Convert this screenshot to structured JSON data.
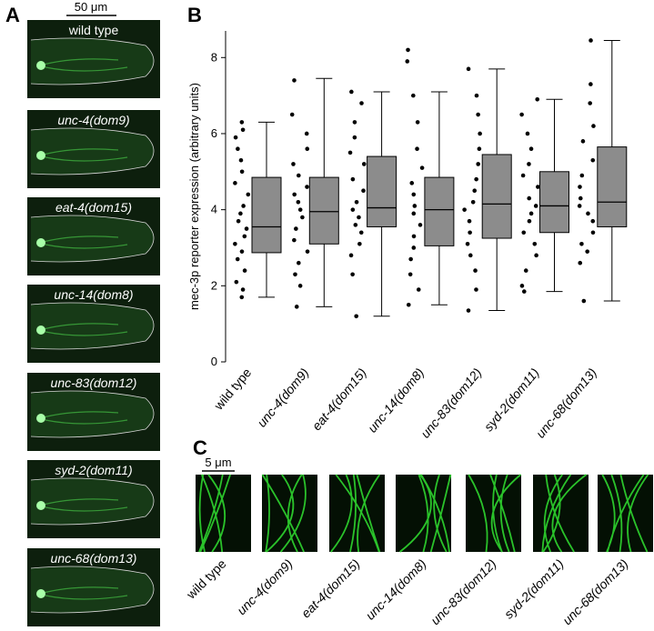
{
  "panel_labels": [
    "A",
    "B",
    "C"
  ],
  "panel_a": {
    "scale_bar": "50 μm",
    "images": [
      "wild type",
      "unc-4(dom9)",
      "eat-4(dom15)",
      "unc-14(dom8)",
      "unc-83(dom12)",
      "syd-2(dom11)",
      "unc-68(dom13)"
    ]
  },
  "chart_data": {
    "type": "box",
    "ylabel": "mec-3p reporter expression (arbitrary units)",
    "categories": [
      "wild type",
      "unc-4(dom9)",
      "eat-4(dom15)",
      "unc-14(dom8)",
      "unc-83(dom12)",
      "syd-2(dom11)",
      "unc-68(dom13)"
    ],
    "whislo": [
      1.7,
      1.45,
      1.2,
      1.5,
      1.35,
      1.85,
      1.6
    ],
    "q1": [
      2.87,
      3.1,
      3.55,
      3.05,
      3.25,
      3.4,
      3.55
    ],
    "median": [
      3.55,
      3.95,
      4.05,
      4.0,
      4.15,
      4.1,
      4.2
    ],
    "q3": [
      4.85,
      4.85,
      5.4,
      4.85,
      5.45,
      5.0,
      5.65
    ],
    "whishi": [
      6.3,
      7.45,
      7.1,
      7.1,
      7.7,
      6.9,
      8.45
    ],
    "points": [
      [
        6.3,
        6.1,
        5.9,
        5.6,
        5.3,
        5.0,
        4.7,
        4.4,
        4.1,
        3.9,
        3.7,
        3.5,
        3.3,
        3.1,
        2.9,
        2.7,
        2.4,
        2.1,
        1.9,
        1.7
      ],
      [
        7.4,
        6.5,
        6.0,
        5.6,
        5.2,
        4.9,
        4.6,
        4.4,
        4.2,
        4.0,
        3.8,
        3.5,
        3.2,
        2.9,
        2.6,
        2.3,
        2.0,
        1.45
      ],
      [
        7.1,
        6.8,
        6.3,
        5.9,
        5.5,
        5.2,
        4.8,
        4.5,
        4.2,
        4.0,
        3.8,
        3.6,
        3.4,
        3.1,
        2.8,
        2.3,
        1.2
      ],
      [
        8.2,
        7.9,
        7.0,
        6.3,
        5.6,
        5.1,
        4.7,
        4.4,
        4.1,
        3.9,
        3.6,
        3.3,
        3.0,
        2.7,
        2.3,
        1.9,
        1.5
      ],
      [
        7.7,
        7.0,
        6.5,
        6.0,
        5.6,
        5.2,
        4.8,
        4.5,
        4.2,
        4.0,
        3.7,
        3.4,
        3.1,
        2.8,
        2.4,
        1.9,
        1.35
      ],
      [
        6.9,
        6.5,
        6.0,
        5.6,
        5.2,
        4.9,
        4.6,
        4.3,
        4.1,
        3.9,
        3.7,
        3.4,
        3.1,
        2.8,
        2.4,
        2.0,
        1.85
      ],
      [
        8.45,
        7.3,
        6.8,
        6.2,
        5.8,
        5.3,
        4.9,
        4.6,
        4.3,
        4.1,
        3.9,
        3.7,
        3.4,
        3.1,
        2.9,
        2.6,
        1.6
      ]
    ],
    "color": "#8c8c8c",
    "ylim": [
      0,
      8.7
    ],
    "yticks": [
      0,
      2,
      4,
      6,
      8
    ]
  },
  "panel_c": {
    "scale_bar": "5 μm",
    "images": [
      "wild type",
      "unc-4(dom9)",
      "eat-4(dom15)",
      "unc-14(dom8)",
      "unc-83(dom12)",
      "syd-2(dom11)",
      "unc-68(dom13)"
    ]
  }
}
